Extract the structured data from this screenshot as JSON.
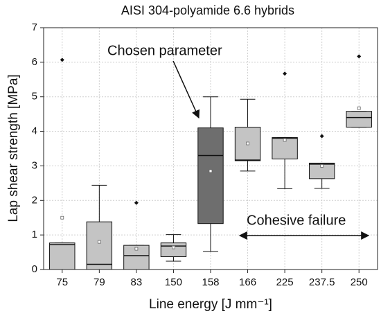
{
  "chart_data": {
    "type": "box",
    "title": "AISI 304-polyamide 6.6 hybrids",
    "x_label": "Line energy [J mm⁻¹]",
    "y_label": "Lap shear strength [MPa]",
    "annotations": [
      "Chosen parameter",
      "Cohesive failure"
    ],
    "categories": [
      "75",
      "79",
      "83",
      "150",
      "158",
      "166",
      "225",
      "237.5",
      "250"
    ],
    "boxes": [
      {
        "min": 0,
        "q1": 0,
        "median": 0.72,
        "q3": 0.77,
        "max": 0.77,
        "mean": 1.5,
        "outliers": [
          6.07
        ],
        "color": "#c4c4c4"
      },
      {
        "min": 0,
        "q1": 0,
        "median": 0.15,
        "q3": 1.38,
        "max": 2.44,
        "mean": 0.8,
        "outliers": [],
        "color": "#c4c4c4"
      },
      {
        "min": 0,
        "q1": 0,
        "median": 0.4,
        "q3": 0.7,
        "max": 0.7,
        "mean": 0.6,
        "outliers": [
          1.93
        ],
        "color": "#c4c4c4"
      },
      {
        "min": 0.24,
        "q1": 0.37,
        "median": 0.68,
        "q3": 0.77,
        "max": 1.01,
        "mean": 0.64,
        "outliers": [],
        "color": "#c4c4c4"
      },
      {
        "min": 0.52,
        "q1": 1.33,
        "median": 3.3,
        "q3": 4.1,
        "max": 5.0,
        "mean": 2.85,
        "outliers": [],
        "color": "#6e6e6e"
      },
      {
        "min": 2.85,
        "q1": 3.15,
        "median": 3.17,
        "q3": 4.12,
        "max": 4.93,
        "mean": 3.65,
        "outliers": [],
        "color": "#c4c4c4"
      },
      {
        "min": 2.34,
        "q1": 3.2,
        "median": 3.8,
        "q3": 3.82,
        "max": 3.82,
        "mean": 3.75,
        "outliers": [
          5.67
        ],
        "color": "#c4c4c4"
      },
      {
        "min": 2.35,
        "q1": 2.63,
        "median": 3.05,
        "q3": 3.08,
        "max": 3.08,
        "mean": 3.0,
        "outliers": [
          3.86
        ],
        "color": "#c4c4c4"
      },
      {
        "min": 4.12,
        "q1": 4.12,
        "median": 4.4,
        "q3": 4.58,
        "max": 4.58,
        "mean": 4.67,
        "outliers": [
          6.17
        ],
        "color": "#c4c4c4"
      }
    ],
    "ylim": [
      0,
      7
    ],
    "yticks": [
      0,
      1,
      2,
      3,
      4,
      5,
      6,
      7
    ],
    "grid": true
  }
}
